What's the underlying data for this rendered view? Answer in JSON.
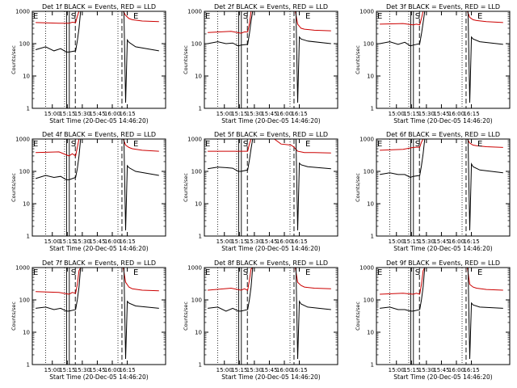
{
  "chart_data": [
    {
      "type": "line",
      "title": "Det 1f BLACK = Events, RED = LLD",
      "xlabel": "Start Time (20-Dec-05 14:46:20)",
      "ylabel": "Counts/sec",
      "x_ticks": [
        "15:00",
        "15:15",
        "15:30",
        "15:45",
        "16:00",
        "16:15"
      ],
      "y_ticks": [
        "1",
        "10",
        "100",
        "1000"
      ],
      "ylim": [
        1,
        1000
      ],
      "yscale": "log",
      "markers": {
        "left": "E",
        "mid": "S",
        "right": "E"
      },
      "series": [
        {
          "color": "#cc0000",
          "x": [
            -4,
            3,
            6,
            7,
            8,
            8.5,
            9,
            9.5,
            10,
            13,
            15,
            16,
            21,
            22,
            22.3,
            23,
            24,
            25,
            28,
            33
          ],
          "values": [
            450,
            430,
            430,
            460,
            450,
            700,
            1000,
            1000,
            1000,
            1000,
            1000,
            1000,
            1000,
            1000,
            1000,
            750,
            600,
            550,
            500,
            480
          ]
        },
        {
          "color": "#000000",
          "x": [
            -4,
            -1,
            1.5,
            3.5,
            5.2,
            6,
            8,
            8.5,
            9,
            9.5,
            10,
            22.5,
            23,
            23.5,
            24,
            26,
            33
          ],
          "values": [
            65,
            80,
            60,
            70,
            55,
            55,
            60,
            120,
            300,
            1000,
            1000,
            1000,
            1.5,
            130,
            110,
            80,
            60
          ]
        }
      ]
    },
    {
      "type": "line",
      "title": "Det 2f BLACK = Events, RED = LLD",
      "xlabel": "Start Time (20-Dec-05 14:46:20)",
      "ylabel": "Counts/sec",
      "x_ticks": [
        "15:00",
        "15:15",
        "15:30",
        "15:45",
        "16:00",
        "16:15"
      ],
      "y_ticks": [
        "1",
        "10",
        "100",
        "1000"
      ],
      "ylim": [
        1,
        1000
      ],
      "yscale": "log",
      "markers": {
        "left": "E",
        "mid": "S",
        "right": "E"
      },
      "series": [
        {
          "color": "#cc0000",
          "x": [
            -4,
            3,
            6,
            7,
            8,
            8.5,
            9,
            9.5,
            10,
            13,
            15,
            16,
            21,
            22,
            22.3,
            23,
            24,
            25,
            28,
            33
          ],
          "values": [
            220,
            240,
            210,
            230,
            230,
            400,
            1000,
            1000,
            1000,
            1000,
            1000,
            1000,
            1000,
            1000,
            1000,
            400,
            300,
            280,
            260,
            250
          ]
        },
        {
          "color": "#000000",
          "x": [
            -4,
            -1,
            1.5,
            3.5,
            5.2,
            6,
            8,
            8.5,
            9,
            9.5,
            10,
            22.5,
            23,
            23.5,
            24,
            26,
            33
          ],
          "values": [
            100,
            115,
            100,
            105,
            85,
            90,
            95,
            200,
            500,
            1000,
            1000,
            1000,
            1.5,
            160,
            140,
            120,
            100
          ]
        }
      ]
    },
    {
      "type": "line",
      "title": "Det 3f BLACK = Events, RED = LLD",
      "xlabel": "Start Time (20-Dec-05 14:46:20)",
      "ylabel": "Counts/sec",
      "x_ticks": [
        "15:00",
        "15:15",
        "15:30",
        "15:45",
        "16:00",
        "16:15"
      ],
      "y_ticks": [
        "1",
        "10",
        "100",
        "1000"
      ],
      "ylim": [
        1,
        1000
      ],
      "yscale": "log",
      "markers": {
        "left": "E",
        "mid": "S",
        "right": "E"
      },
      "series": [
        {
          "color": "#cc0000",
          "x": [
            -4,
            3,
            6,
            7,
            8,
            8.5,
            9,
            9.5,
            10,
            13,
            15,
            16,
            21,
            22,
            22.3,
            23,
            24,
            25,
            28,
            33
          ],
          "values": [
            400,
            420,
            380,
            400,
            380,
            600,
            1000,
            1000,
            1000,
            1000,
            1000,
            1000,
            1000,
            1000,
            1000,
            650,
            550,
            520,
            480,
            450
          ]
        },
        {
          "color": "#000000",
          "x": [
            -4,
            -1,
            1.5,
            3.5,
            5.2,
            6,
            8,
            8.5,
            9,
            9.5,
            10,
            22.5,
            23,
            23.5,
            24,
            26,
            33
          ],
          "values": [
            100,
            115,
            95,
            110,
            85,
            90,
            100,
            200,
            450,
            1000,
            1000,
            1000,
            1.5,
            160,
            140,
            115,
            95
          ]
        }
      ]
    },
    {
      "type": "line",
      "title": "Det 4f BLACK = Events, RED = LLD",
      "xlabel": "Start Time (20-Dec-05 14:46:20)",
      "ylabel": "Counts/sec",
      "x_ticks": [
        "15:00",
        "15:15",
        "15:30",
        "15:45",
        "16:00",
        "16:15"
      ],
      "y_ticks": [
        "1",
        "10",
        "100",
        "1000"
      ],
      "ylim": [
        1,
        1000
      ],
      "yscale": "log",
      "markers": {
        "left": "E",
        "mid": "S",
        "right": "E"
      },
      "series": [
        {
          "color": "#cc0000",
          "x": [
            -4,
            3,
            6,
            7,
            8,
            8.5,
            9,
            9.5,
            10,
            13,
            15,
            16,
            21,
            22,
            22.3,
            23,
            24,
            25,
            28,
            33
          ],
          "values": [
            380,
            400,
            300,
            350,
            300,
            550,
            1000,
            1000,
            1000,
            1000,
            1000,
            1000,
            1000,
            1000,
            1000,
            650,
            550,
            500,
            450,
            420
          ]
        },
        {
          "color": "#000000",
          "x": [
            -4,
            -1,
            1.5,
            3.5,
            5.2,
            6,
            8,
            8.5,
            9,
            9.5,
            10,
            22.5,
            23,
            23.5,
            24,
            26,
            33
          ],
          "values": [
            60,
            75,
            65,
            70,
            55,
            55,
            65,
            120,
            300,
            1000,
            1000,
            1000,
            1.5,
            150,
            130,
            100,
            75
          ]
        }
      ]
    },
    {
      "type": "line",
      "title": "Det 5f BLACK = Events, RED = LLD",
      "xlabel": "Start Time (20-Dec-05 14:46:20)",
      "ylabel": "Counts/sec",
      "x_ticks": [
        "15:00",
        "15:15",
        "15:30",
        "15:45",
        "16:00",
        "16:15"
      ],
      "y_ticks": [
        "1",
        "10",
        "100",
        "1000"
      ],
      "ylim": [
        1,
        1000
      ],
      "yscale": "log",
      "markers": {
        "left": "E",
        "mid": "S",
        "right": "E"
      },
      "series": [
        {
          "color": "#cc0000",
          "x": [
            -4,
            3,
            6,
            7,
            8,
            8.5,
            9,
            9.5,
            10,
            13,
            15,
            16,
            18,
            21,
            22,
            22.3,
            23,
            24,
            25,
            28,
            33
          ],
          "values": [
            420,
            420,
            420,
            420,
            420,
            700,
            1000,
            1000,
            1000,
            1000,
            1000,
            1000,
            700,
            650,
            550,
            500,
            420,
            400,
            380,
            380,
            370
          ]
        },
        {
          "color": "#000000",
          "x": [
            -4,
            -1,
            1.5,
            3.5,
            5.2,
            6,
            8,
            8.5,
            9,
            9.5,
            10,
            22.5,
            23,
            23.5,
            24,
            26,
            33
          ],
          "values": [
            120,
            135,
            130,
            125,
            100,
            100,
            110,
            220,
            500,
            1000,
            1000,
            1000,
            1.5,
            180,
            160,
            140,
            120
          ]
        }
      ]
    },
    {
      "type": "line",
      "title": "Det 6f BLACK = Events, RED = LLD",
      "xlabel": "Start Time (20-Dec-05 14:46:20)",
      "ylabel": "Counts/sec",
      "x_ticks": [
        "15:00",
        "15:15",
        "15:30",
        "15:45",
        "16:00",
        "16:15"
      ],
      "y_ticks": [
        "1",
        "10",
        "100",
        "1000"
      ],
      "ylim": [
        1,
        1000
      ],
      "yscale": "log",
      "markers": {
        "left": "E",
        "mid": "S",
        "right": "E"
      },
      "series": [
        {
          "color": "#cc0000",
          "x": [
            -4,
            3,
            6,
            7,
            8,
            8.5,
            9,
            9.5,
            10,
            13,
            15,
            16,
            21,
            22,
            22.3,
            23,
            24,
            25,
            28,
            33
          ],
          "values": [
            450,
            480,
            550,
            560,
            560,
            800,
            1000,
            1000,
            1000,
            1000,
            1000,
            1000,
            1000,
            1000,
            1000,
            750,
            650,
            620,
            580,
            550
          ]
        },
        {
          "color": "#000000",
          "x": [
            -4,
            -1,
            1.5,
            3.5,
            5.2,
            6,
            8,
            8.5,
            9,
            9.5,
            10,
            22.5,
            23,
            23.5,
            24,
            26,
            33
          ],
          "values": [
            80,
            90,
            80,
            80,
            65,
            70,
            75,
            150,
            350,
            1000,
            1000,
            1000,
            1.5,
            170,
            140,
            110,
            90
          ]
        }
      ]
    },
    {
      "type": "line",
      "title": "Det 7f BLACK = Events, RED = LLD",
      "xlabel": "Start Time (20-Dec-05 14:46:20)",
      "ylabel": "Counts/sec",
      "x_ticks": [
        "15:00",
        "15:15",
        "15:30",
        "15:45",
        "16:00",
        "16:15"
      ],
      "y_ticks": [
        "1",
        "10",
        "100",
        "1000"
      ],
      "ylim": [
        1,
        1000
      ],
      "yscale": "log",
      "markers": {
        "left": "E",
        "mid": "S",
        "right": "E"
      },
      "series": [
        {
          "color": "#cc0000",
          "x": [
            -4,
            3,
            6,
            7,
            8,
            8.5,
            9,
            9.5,
            10,
            13,
            15,
            16,
            21,
            22,
            22.3,
            23,
            24,
            25,
            28,
            33
          ],
          "values": [
            180,
            170,
            150,
            170,
            160,
            300,
            800,
            1000,
            1000,
            1000,
            1000,
            1000,
            1000,
            1000,
            1000,
            350,
            250,
            220,
            200,
            190
          ]
        },
        {
          "color": "#000000",
          "x": [
            -4,
            -1,
            1.5,
            3.5,
            5.2,
            6,
            8,
            8.5,
            9,
            9.5,
            10,
            22.5,
            23,
            23.5,
            24,
            26,
            33
          ],
          "values": [
            55,
            60,
            50,
            55,
            45,
            45,
            50,
            100,
            250,
            1000,
            1000,
            1000,
            1.5,
            90,
            80,
            65,
            55
          ]
        }
      ]
    },
    {
      "type": "line",
      "title": "Det 8f BLACK = Events, RED = LLD",
      "xlabel": "Start Time (20-Dec-05 14:46:20)",
      "ylabel": "Counts/sec",
      "x_ticks": [
        "15:00",
        "15:15",
        "15:30",
        "15:45",
        "16:00",
        "16:15"
      ],
      "y_ticks": [
        "1",
        "10",
        "100",
        "1000"
      ],
      "ylim": [
        1,
        1000
      ],
      "yscale": "log",
      "markers": {
        "left": "E",
        "mid": "S",
        "right": "E"
      },
      "series": [
        {
          "color": "#cc0000",
          "x": [
            -4,
            3,
            6,
            7,
            8,
            8.5,
            9,
            9.5,
            10,
            13,
            15,
            16,
            21,
            22,
            22.3,
            23,
            24,
            25,
            28,
            33
          ],
          "values": [
            200,
            230,
            200,
            220,
            200,
            400,
            900,
            1000,
            1000,
            1000,
            1000,
            1000,
            1000,
            1000,
            1000,
            350,
            280,
            250,
            230,
            220
          ]
        },
        {
          "color": "#000000",
          "x": [
            -4,
            -1,
            1.5,
            3.5,
            5.2,
            6,
            8,
            8.5,
            9,
            9.5,
            10,
            22.5,
            23,
            23.5,
            24,
            26,
            33
          ],
          "values": [
            55,
            60,
            45,
            55,
            45,
            45,
            50,
            100,
            250,
            1000,
            1000,
            1000,
            1.5,
            90,
            75,
            60,
            50
          ]
        }
      ]
    },
    {
      "type": "line",
      "title": "Det 9f BLACK = Events, RED = LLD",
      "xlabel": "Start Time (20-Dec-05 14:46:20)",
      "ylabel": "Counts/sec",
      "x_ticks": [
        "15:00",
        "15:15",
        "15:30",
        "15:45",
        "16:00",
        "16:15"
      ],
      "y_ticks": [
        "1",
        "10",
        "100",
        "1000"
      ],
      "ylim": [
        1,
        1000
      ],
      "yscale": "log",
      "markers": {
        "left": "E",
        "mid": "S",
        "right": "E"
      },
      "series": [
        {
          "color": "#cc0000",
          "x": [
            -4,
            3,
            6,
            7,
            8,
            8.5,
            9,
            9.5,
            10,
            13,
            15,
            16,
            21,
            22,
            22.3,
            23,
            24,
            25,
            28,
            33
          ],
          "values": [
            150,
            160,
            150,
            160,
            150,
            300,
            800,
            1000,
            1000,
            1000,
            1000,
            1000,
            1000,
            1000,
            1000,
            300,
            250,
            230,
            210,
            200
          ]
        },
        {
          "color": "#000000",
          "x": [
            -4,
            -1,
            1.5,
            3.5,
            5.2,
            6,
            8,
            8.5,
            9,
            9.5,
            10,
            22.5,
            23,
            23.5,
            24,
            26,
            33
          ],
          "values": [
            55,
            60,
            50,
            50,
            45,
            45,
            50,
            100,
            250,
            1000,
            1000,
            1000,
            1.5,
            80,
            70,
            60,
            55
          ]
        }
      ]
    }
  ]
}
